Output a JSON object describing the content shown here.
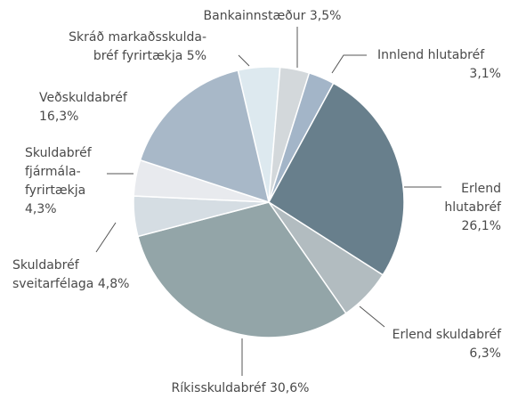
{
  "chart_data": {
    "type": "pie",
    "categories": [
      [
        "Skráð markaðsskulda-",
        "bréf fyrirtækja"
      ],
      [
        "Bankainnstæður"
      ],
      [
        "Innlend hlutabréf"
      ],
      [
        "Erlend",
        "hlutabréf"
      ],
      [
        "Erlend skuldabréf"
      ],
      [
        "Ríkisskuldabréf"
      ],
      [
        "Skuldabréf",
        "sveitarfélaga"
      ],
      [
        "Skuldabréf",
        "fjármála-",
        "fyrirtækja"
      ],
      [
        "Veðskuldabréf"
      ]
    ],
    "values": [
      5,
      3.5,
      3.1,
      26.1,
      6.3,
      30.6,
      4.8,
      4.3,
      16.3
    ],
    "value_labels": [
      "5%",
      "3,5%",
      "3,1%",
      "26,1%",
      "6,3%",
      "30,6%",
      "4,8%",
      "4,3%",
      "16,3%"
    ],
    "colors": [
      "#dde9ef",
      "#d3d8db",
      "#a3b5c8",
      "#687f8c",
      "#b2bcc0",
      "#93a5a8",
      "#d5dde3",
      "#e8eaee",
      "#a8b8c8"
    ]
  }
}
